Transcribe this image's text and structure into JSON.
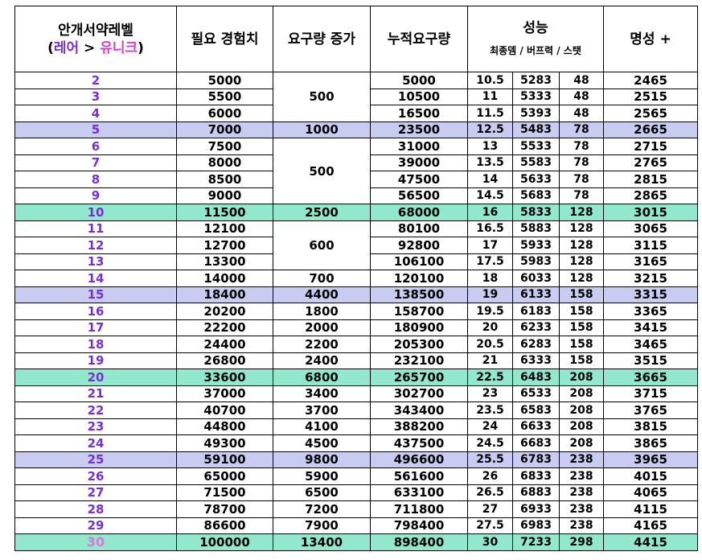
{
  "headers": {
    "level": "안개서약레벨",
    "level_sub_open": "(",
    "level_sub_rare": "레어",
    "level_sub_arrow": " > ",
    "level_sub_unique": "유니크",
    "level_sub_close": ")",
    "required_exp": "필요 경험치",
    "req_increase": "요구량 증가",
    "cumulative": "누적요구량",
    "performance": "성능",
    "performance_sub": "최종뎀 / 버프력 / 스탯",
    "fame": "명성 +"
  },
  "rows": [
    {
      "level": "2",
      "exp": "5000",
      "inc": "",
      "cum": "5000",
      "dmg": "10.5",
      "buff": "5283",
      "stat": "48",
      "fame": "2465"
    },
    {
      "level": "3",
      "exp": "5500",
      "inc": "500",
      "cum": "10500",
      "dmg": "11",
      "buff": "5333",
      "stat": "48",
      "fame": "2515"
    },
    {
      "level": "4",
      "exp": "6000",
      "inc": "",
      "cum": "16500",
      "dmg": "11.5",
      "buff": "5393",
      "stat": "48",
      "fame": "2565"
    },
    {
      "level": "5",
      "exp": "7000",
      "inc": "1000",
      "cum": "23500",
      "dmg": "12.5",
      "buff": "5483",
      "stat": "78",
      "fame": "2665",
      "hl": "blue"
    },
    {
      "level": "6",
      "exp": "7500",
      "inc": "500",
      "cum": "31000",
      "dmg": "13",
      "buff": "5533",
      "stat": "78",
      "fame": "2715"
    },
    {
      "level": "7",
      "exp": "8000",
      "inc": "",
      "cum": "39000",
      "dmg": "13.5",
      "buff": "5583",
      "stat": "78",
      "fame": "2765"
    },
    {
      "level": "8",
      "exp": "8500",
      "inc": "",
      "cum": "47500",
      "dmg": "14",
      "buff": "5633",
      "stat": "78",
      "fame": "2815"
    },
    {
      "level": "9",
      "exp": "9000",
      "inc": "",
      "cum": "56500",
      "dmg": "14.5",
      "buff": "5683",
      "stat": "78",
      "fame": "2865"
    },
    {
      "level": "10",
      "exp": "11500",
      "inc": "2500",
      "cum": "68000",
      "dmg": "16",
      "buff": "5833",
      "stat": "128",
      "fame": "3015",
      "hl": "teal"
    },
    {
      "level": "11",
      "exp": "12100",
      "inc": "600",
      "cum": "80100",
      "dmg": "16.5",
      "buff": "5883",
      "stat": "128",
      "fame": "3065"
    },
    {
      "level": "12",
      "exp": "12700",
      "inc": "",
      "cum": "92800",
      "dmg": "17",
      "buff": "5933",
      "stat": "128",
      "fame": "3115"
    },
    {
      "level": "13",
      "exp": "13300",
      "inc": "",
      "cum": "106100",
      "dmg": "17.5",
      "buff": "5983",
      "stat": "128",
      "fame": "3165"
    },
    {
      "level": "14",
      "exp": "14000",
      "inc": "700",
      "cum": "120100",
      "dmg": "18",
      "buff": "6033",
      "stat": "128",
      "fame": "3215"
    },
    {
      "level": "15",
      "exp": "18400",
      "inc": "4400",
      "cum": "138500",
      "dmg": "19",
      "buff": "6133",
      "stat": "158",
      "fame": "3315",
      "hl": "blue"
    },
    {
      "level": "16",
      "exp": "20200",
      "inc": "1800",
      "cum": "158700",
      "dmg": "19.5",
      "buff": "6183",
      "stat": "158",
      "fame": "3365"
    },
    {
      "level": "17",
      "exp": "22200",
      "inc": "2000",
      "cum": "180900",
      "dmg": "20",
      "buff": "6233",
      "stat": "158",
      "fame": "3415"
    },
    {
      "level": "18",
      "exp": "24400",
      "inc": "2200",
      "cum": "205300",
      "dmg": "20.5",
      "buff": "6283",
      "stat": "158",
      "fame": "3465"
    },
    {
      "level": "19",
      "exp": "26800",
      "inc": "2400",
      "cum": "232100",
      "dmg": "21",
      "buff": "6333",
      "stat": "158",
      "fame": "3515"
    },
    {
      "level": "20",
      "exp": "33600",
      "inc": "6800",
      "cum": "265700",
      "dmg": "22.5",
      "buff": "6483",
      "stat": "208",
      "fame": "3665",
      "hl": "teal"
    },
    {
      "level": "21",
      "exp": "37000",
      "inc": "3400",
      "cum": "302700",
      "dmg": "23",
      "buff": "6533",
      "stat": "208",
      "fame": "3715"
    },
    {
      "level": "22",
      "exp": "40700",
      "inc": "3700",
      "cum": "343400",
      "dmg": "23.5",
      "buff": "6583",
      "stat": "208",
      "fame": "3765"
    },
    {
      "level": "23",
      "exp": "44800",
      "inc": "4100",
      "cum": "388200",
      "dmg": "24",
      "buff": "6633",
      "stat": "208",
      "fame": "3815"
    },
    {
      "level": "24",
      "exp": "49300",
      "inc": "4500",
      "cum": "437500",
      "dmg": "24.5",
      "buff": "6683",
      "stat": "208",
      "fame": "3865"
    },
    {
      "level": "25",
      "exp": "59100",
      "inc": "9800",
      "cum": "496600",
      "dmg": "25.5",
      "buff": "6783",
      "stat": "238",
      "fame": "3965",
      "hl": "blue"
    },
    {
      "level": "26",
      "exp": "65000",
      "inc": "5900",
      "cum": "561600",
      "dmg": "26",
      "buff": "6833",
      "stat": "238",
      "fame": "4015"
    },
    {
      "level": "27",
      "exp": "71500",
      "inc": "6500",
      "cum": "633100",
      "dmg": "26.5",
      "buff": "6883",
      "stat": "238",
      "fame": "4065"
    },
    {
      "level": "28",
      "exp": "78700",
      "inc": "7200",
      "cum": "711800",
      "dmg": "27",
      "buff": "6933",
      "stat": "238",
      "fame": "4115"
    },
    {
      "level": "29",
      "exp": "86600",
      "inc": "7900",
      "cum": "798400",
      "dmg": "27.5",
      "buff": "6983",
      "stat": "238",
      "fame": "4165"
    },
    {
      "level": "30",
      "exp": "100000",
      "inc": "13400",
      "cum": "898400",
      "dmg": "30",
      "buff": "7233",
      "stat": "298",
      "fame": "4415",
      "hl": "teal",
      "max": true
    }
  ],
  "colors": {
    "level_text": "#7a2fd6",
    "max_level_text": "#d47ad9",
    "highlight_blue": "#c8ccf0",
    "highlight_teal": "#92e8cc"
  }
}
